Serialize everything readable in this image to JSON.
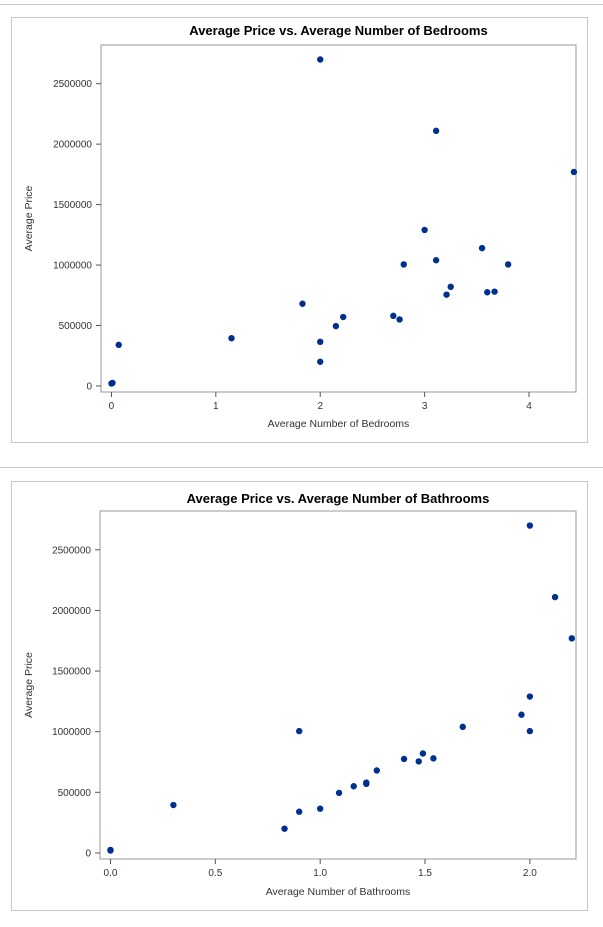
{
  "chart_data": [
    {
      "type": "scatter",
      "title": "Average Price vs. Average Number of Bedrooms",
      "xlabel": "Average Number of Bedrooms",
      "ylabel": "Average Price",
      "xlim": [
        -0.1,
        4.45
      ],
      "ylim": [
        -50000,
        2820000
      ],
      "xticks": [
        0,
        1,
        2,
        3,
        4
      ],
      "xtick_labels": [
        "0",
        "1",
        "2",
        "3",
        "4"
      ],
      "yticks": [
        0,
        500000,
        1000000,
        1500000,
        2000000,
        2500000
      ],
      "ytick_labels": [
        "0",
        "500000",
        "1000000",
        "1500000",
        "2000000",
        "2500000"
      ],
      "grid": false,
      "series": [
        {
          "color": "#00308f",
          "points": [
            [
              0.0,
              20000
            ],
            [
              0.01,
              25000
            ],
            [
              0.07,
              340000
            ],
            [
              1.15,
              395000
            ],
            [
              1.83,
              680000
            ],
            [
              2.0,
              2700000
            ],
            [
              2.0,
              365000
            ],
            [
              2.0,
              200000
            ],
            [
              2.15,
              495000
            ],
            [
              2.22,
              570000
            ],
            [
              2.7,
              580000
            ],
            [
              2.76,
              550000
            ],
            [
              2.8,
              1005000
            ],
            [
              3.0,
              1290000
            ],
            [
              3.11,
              2110000
            ],
            [
              3.11,
              1040000
            ],
            [
              3.21,
              755000
            ],
            [
              3.25,
              820000
            ],
            [
              3.55,
              1140000
            ],
            [
              3.6,
              775000
            ],
            [
              3.67,
              780000
            ],
            [
              3.8,
              1005000
            ],
            [
              4.43,
              1770000
            ]
          ]
        }
      ]
    },
    {
      "type": "scatter",
      "title": "Average Price vs. Average Number of Bathrooms",
      "xlabel": "Average Number of Bathrooms",
      "ylabel": "Average Price",
      "xlim": [
        -0.05,
        2.22
      ],
      "ylim": [
        -50000,
        2820000
      ],
      "xticks": [
        0.0,
        0.5,
        1.0,
        1.5,
        2.0
      ],
      "xtick_labels": [
        "0.0",
        "0.5",
        "1.0",
        "1.5",
        "2.0"
      ],
      "yticks": [
        0,
        500000,
        1000000,
        1500000,
        2000000,
        2500000
      ],
      "ytick_labels": [
        "0",
        "500000",
        "1000000",
        "1500000",
        "2000000",
        "2500000"
      ],
      "grid": false,
      "series": [
        {
          "color": "#00308f",
          "points": [
            [
              0.0,
              20000
            ],
            [
              0.0,
              25000
            ],
            [
              0.3,
              395000
            ],
            [
              0.83,
              200000
            ],
            [
              0.9,
              340000
            ],
            [
              0.9,
              1005000
            ],
            [
              1.0,
              365000
            ],
            [
              1.09,
              495000
            ],
            [
              1.16,
              550000
            ],
            [
              1.22,
              570000
            ],
            [
              1.22,
              580000
            ],
            [
              1.27,
              680000
            ],
            [
              1.4,
              775000
            ],
            [
              1.47,
              755000
            ],
            [
              1.49,
              820000
            ],
            [
              1.54,
              780000
            ],
            [
              1.68,
              1040000
            ],
            [
              1.96,
              1140000
            ],
            [
              2.0,
              2700000
            ],
            [
              2.0,
              1290000
            ],
            [
              2.0,
              1005000
            ],
            [
              2.12,
              2110000
            ],
            [
              2.2,
              1770000
            ]
          ]
        }
      ]
    }
  ]
}
